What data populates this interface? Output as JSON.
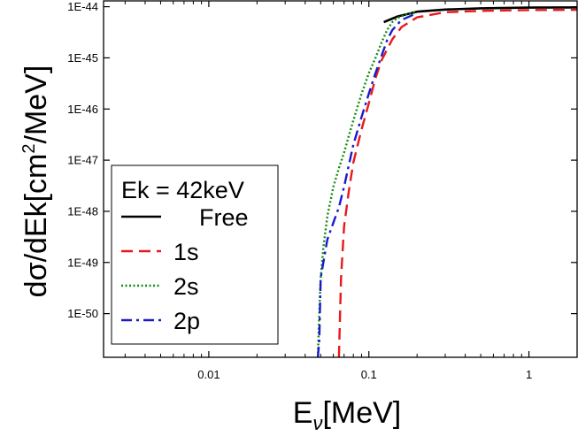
{
  "chart_data": {
    "type": "line",
    "title": "",
    "xlabel": {
      "main": "E",
      "sub": "ν",
      "unit": "[MeV]"
    },
    "ylabel": {
      "prefix": "dσ/dEk[cm",
      "sup": "2",
      "suffix": "/MeV]"
    },
    "xscale": "log",
    "yscale": "log",
    "xlim": [
      0.0022,
      2
    ],
    "ylim": [
      1.4e-51,
      1.3e-44
    ],
    "grid": false,
    "x_ticks": [
      {
        "value": 0.01,
        "label": "0.01"
      },
      {
        "value": 0.1,
        "label": "0.1"
      },
      {
        "value": 1,
        "label": "1"
      }
    ],
    "y_ticks": [
      {
        "value": 1e-44,
        "label": "1E-44"
      },
      {
        "value": 1e-45,
        "label": "1E-45"
      },
      {
        "value": 1e-46,
        "label": "1E-46"
      },
      {
        "value": 1e-47,
        "label": "1E-47"
      },
      {
        "value": 1e-48,
        "label": "1E-48"
      },
      {
        "value": 1e-49,
        "label": "1E-49"
      },
      {
        "value": 1e-50,
        "label": "1E-50"
      }
    ],
    "legend": {
      "position": "bottom-left",
      "title": "Ek = 42keV"
    },
    "series": [
      {
        "name": "Free",
        "color": "#000000",
        "dash": "solid",
        "x": [
          0.124,
          0.15,
          0.2,
          0.3,
          0.5,
          1.0,
          2.0
        ],
        "y": [
          5e-45,
          6.4e-45,
          8e-45,
          8.8e-45,
          9.3e-45,
          9.6e-45,
          9.7e-45
        ]
      },
      {
        "name": "1s",
        "color": "#e8191b",
        "dash": "dashed",
        "x": [
          0.065,
          0.067,
          0.07,
          0.075,
          0.08,
          0.09,
          0.1,
          0.11,
          0.12,
          0.14,
          0.16,
          0.2,
          0.3,
          0.5,
          1.0,
          2.0
        ],
        "y": [
          1.4e-51,
          5e-50,
          5e-49,
          2.5e-48,
          9e-48,
          4e-47,
          1.3e-46,
          4e-46,
          9e-46,
          2.3e-45,
          4e-45,
          6.2e-45,
          7.8e-45,
          8.3e-45,
          8.6e-45,
          8.7e-45
        ]
      },
      {
        "name": "2s",
        "color": "#118a11",
        "dash": "dotted",
        "x": [
          0.048,
          0.049,
          0.05,
          0.052,
          0.055,
          0.06,
          0.065,
          0.07,
          0.075,
          0.08,
          0.09,
          0.1,
          0.11,
          0.12,
          0.13,
          0.14,
          0.15,
          0.17,
          0.2
        ],
        "y": [
          1.4e-51,
          1e-50,
          5e-50,
          2e-49,
          8e-49,
          3e-48,
          7e-48,
          1.4e-47,
          3e-47,
          6e-47,
          2e-46,
          5e-46,
          1e-45,
          2e-45,
          3.5e-45,
          5e-45,
          6e-45,
          7e-45,
          7.8e-45
        ]
      },
      {
        "name": "2p",
        "color": "#1a1acc",
        "dash": "dashdot",
        "x": [
          0.048,
          0.049,
          0.05,
          0.055,
          0.06,
          0.065,
          0.07,
          0.075,
          0.08,
          0.09,
          0.1,
          0.11,
          0.12,
          0.13,
          0.14,
          0.16,
          0.2
        ],
        "y": [
          1.4e-51,
          3e-51,
          5e-50,
          2.8e-49,
          6e-49,
          1.2e-48,
          3e-48,
          8e-48,
          2e-47,
          7e-47,
          2e-46,
          5e-46,
          1.1e-45,
          2.2e-45,
          3.5e-45,
          5.5e-45,
          7.5e-45
        ]
      }
    ]
  }
}
